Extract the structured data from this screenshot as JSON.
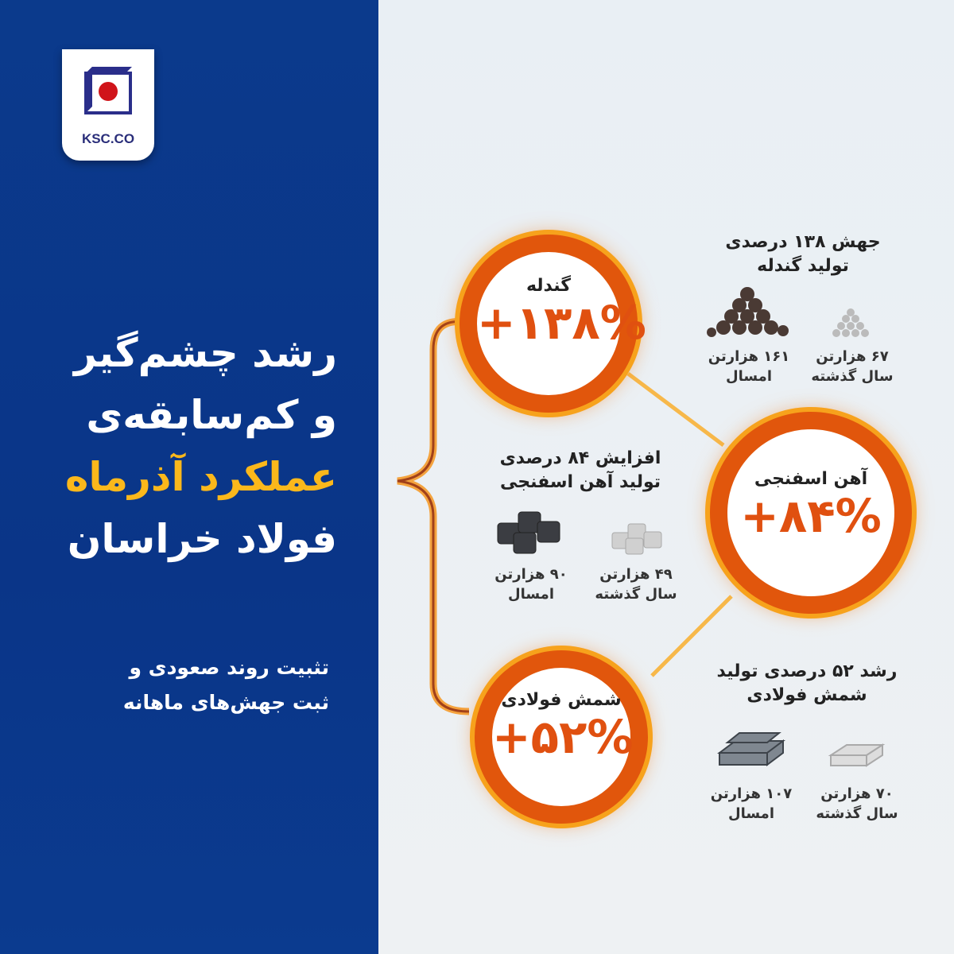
{
  "brand": {
    "logo_text": "KSC.CO",
    "colors": {
      "blue": "#0b3a8c",
      "red": "#d0141a",
      "orange": "#e1560c",
      "yellow": "#fbb81b"
    }
  },
  "headline": {
    "lines": [
      "رشد چشم‌گیر",
      "و کم‌سابقه‌ی",
      "عملکرد آذرماه",
      "فولاد خراسان"
    ]
  },
  "subtitle": {
    "lines": [
      "تثبیت روند صعودی و",
      "ثبت جهش‌های ماهانه"
    ]
  },
  "products": [
    {
      "name": "گندله",
      "growth": "+۱۳۸%",
      "heading": [
        "جهش ۱۳۸ درصدی",
        "تولید گندله"
      ],
      "this_year": {
        "value": "۱۶۱ هزارتن",
        "label": "امسال"
      },
      "last_year": {
        "value": "۶۷ هزارتن",
        "label": "سال گذشته"
      },
      "icon": "pellet-pile"
    },
    {
      "name": "آهن اسفنجی",
      "growth": "+۸۴%",
      "heading": [
        "افزایش ۸۴ درصدی",
        "تولید آهن اسفنجی"
      ],
      "this_year": {
        "value": "۹۰ هزارتن",
        "label": "امسال"
      },
      "last_year": {
        "value": "۴۹ هزارتن",
        "label": "سال گذشته"
      },
      "icon": "sponge-iron-cubes"
    },
    {
      "name": "شمش فولادی",
      "growth": "+۵۲%",
      "heading": [
        "رشد ۵۲ درصدی تولید",
        "شمش فولادی"
      ],
      "this_year": {
        "value": "۱۰۷ هزارتن",
        "label": "امسال"
      },
      "last_year": {
        "value": "۷۰ هزارتن",
        "label": "سال گذشته"
      },
      "icon": "steel-billets"
    }
  ]
}
